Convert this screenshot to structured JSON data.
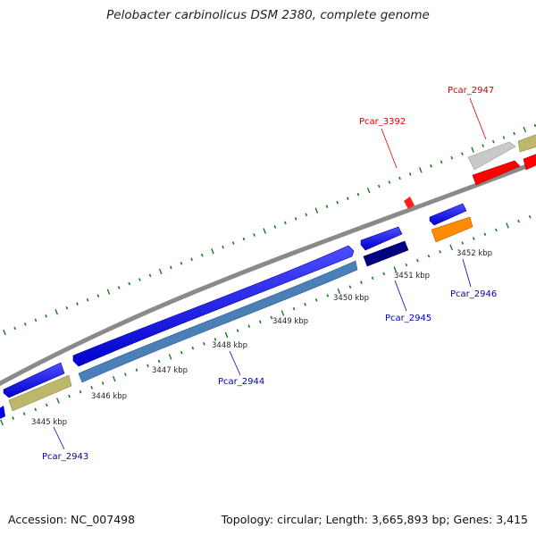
{
  "title": "Pelobacter carbinolicus DSM 2380, complete genome",
  "footer": {
    "accession": "Accession: NC_007498",
    "summary": "Topology: circular; Length: 3,665,893 bp; Genes: 3,415"
  },
  "colors": {
    "backbone": "#8a8a8a",
    "ticks": "#1a7a1a",
    "forward_gene": "#0000ee",
    "label_red": "#dd0000",
    "label_blue": "#0000bb",
    "olive": "#bdb76b",
    "steelblue": "#4a7fb8",
    "navy": "#000080",
    "orange": "#ff8c00",
    "gray": "#c8c8c8",
    "red": "#ff0000"
  },
  "scale_labels": [
    "3445 kbp",
    "3446 kbp",
    "3447 kbp",
    "3448 kbp",
    "3449 kbp",
    "3450 kbp",
    "3451 kbp",
    "3452 kbp"
  ],
  "gene_labels": [
    {
      "text": "Pcar_2947",
      "color": "red"
    },
    {
      "text": "Pcar_3392",
      "color": "red"
    },
    {
      "text": "Pcar_2946",
      "color": "blue"
    },
    {
      "text": "Pcar_2945",
      "color": "blue"
    },
    {
      "text": "Pcar_2944",
      "color": "blue"
    },
    {
      "text": "Pcar_2943",
      "color": "blue"
    }
  ]
}
